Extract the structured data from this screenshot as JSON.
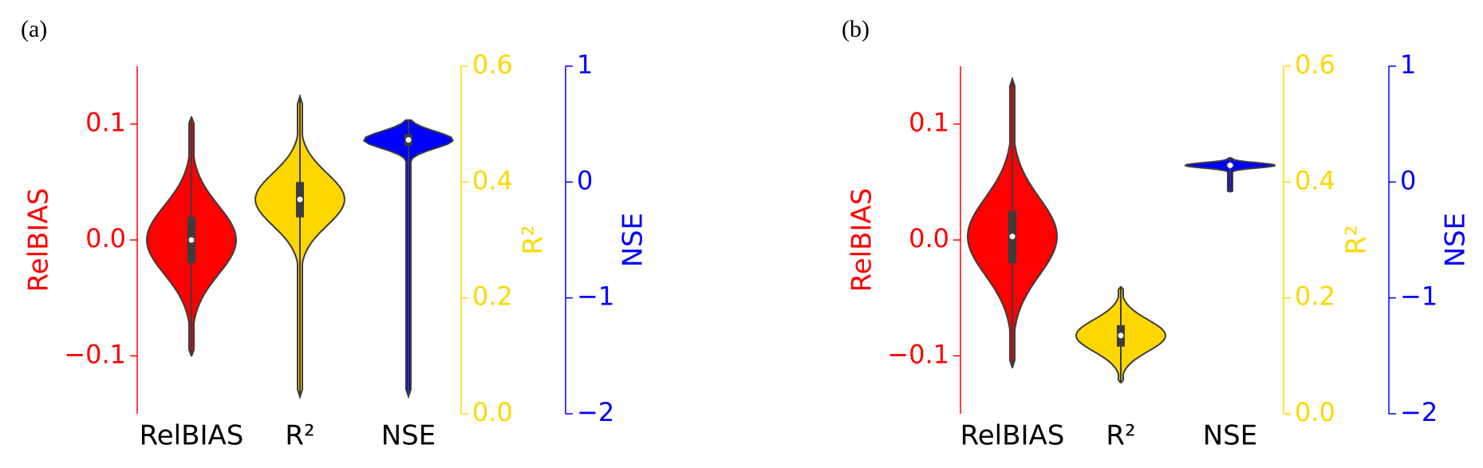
{
  "chart_data": [
    {
      "type": "violin",
      "panel_label": "(a)",
      "categories": [
        "RelBIAS",
        "R²",
        "NSE"
      ],
      "axes": [
        {
          "label": "RelBIAS",
          "color": "#ff0000",
          "ylim": [
            -0.15,
            0.15
          ],
          "yticks": [
            {
              "value": -0.1,
              "label": "−0.1"
            },
            {
              "value": 0,
              "label": "0.0"
            },
            0.1
          ]
        },
        {
          "label": "R²",
          "color": "#ffd700",
          "ylim": [
            0,
            0.6
          ],
          "yticks": [
            {
              "value": 0,
              "label": "0.0"
            },
            0.2,
            0.4,
            0.6
          ]
        },
        {
          "label": "NSE",
          "color": "#0000ff",
          "ylim": [
            -2,
            1
          ],
          "yticks": [
            {
              "value": -2,
              "label": "−2"
            },
            {
              "value": -1,
              "label": "−1"
            },
            0,
            1
          ]
        }
      ],
      "violins": [
        {
          "color": "#ff0000",
          "axis": 0,
          "min": -0.1,
          "q1": -0.02,
          "median": 0,
          "q3": 0.02,
          "max": 0.106
        },
        {
          "color": "#ffd700",
          "axis": 1,
          "min": 0.029,
          "q1": 0.339,
          "median": 0.37,
          "q3": 0.4,
          "max": 0.548
        },
        {
          "color": "#0000ff",
          "axis": 2,
          "min": -1.85,
          "q1": 0.315,
          "median": 0.364,
          "q3": 0.413,
          "max": 0.535
        }
      ]
    },
    {
      "type": "violin",
      "panel_label": "(b)",
      "categories": [
        "RelBIAS",
        "R²",
        "NSE"
      ],
      "axes": [
        {
          "label": "RelBIAS",
          "color": "#ff0000",
          "ylim": [
            -0.15,
            0.15
          ],
          "yticks": [
            {
              "value": -0.1,
              "label": "−0.1"
            },
            {
              "value": 0,
              "label": "0.0"
            },
            0.1
          ]
        },
        {
          "label": "R²",
          "color": "#ffd700",
          "ylim": [
            0,
            0.6
          ],
          "yticks": [
            {
              "value": 0,
              "label": "0.0"
            },
            0.2,
            0.4,
            0.6
          ]
        },
        {
          "label": "NSE",
          "color": "#0000ff",
          "ylim": [
            -2,
            1
          ],
          "yticks": [
            {
              "value": -2,
              "label": "−2"
            },
            {
              "value": -1,
              "label": "−1"
            },
            0,
            1
          ]
        }
      ],
      "violins": [
        {
          "color": "#ff0000",
          "axis": 0,
          "min": -0.11,
          "q1": -0.02,
          "median": 0.003,
          "q3": 0.025,
          "max": 0.139
        },
        {
          "color": "#ffd700",
          "axis": 1,
          "min": 0.054,
          "q1": 0.116,
          "median": 0.135,
          "q3": 0.153,
          "max": 0.219
        },
        {
          "color": "#0000ff",
          "axis": 2,
          "min": -0.084,
          "q1": 0.13,
          "median": 0.144,
          "q3": 0.16,
          "max": 0.209
        }
      ]
    }
  ]
}
